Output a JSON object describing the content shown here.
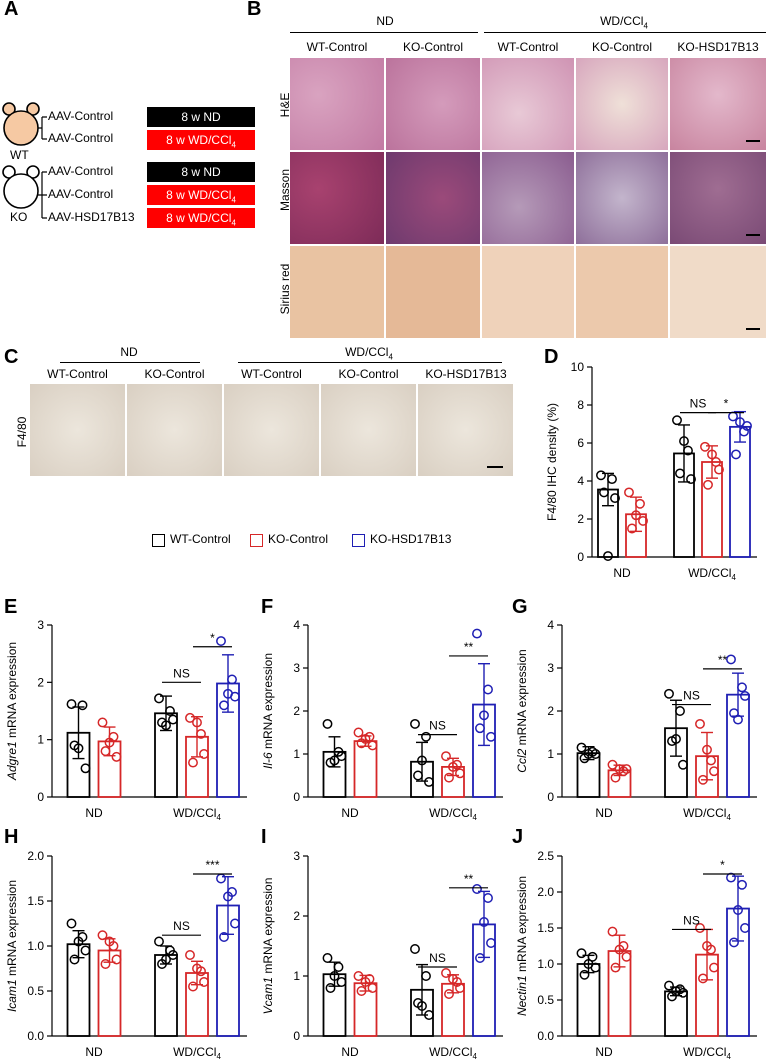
{
  "panels": {
    "A": "A",
    "B": "B",
    "C": "C",
    "D": "D",
    "E": "E",
    "F": "F",
    "G": "G",
    "H": "H",
    "I": "I",
    "J": "J"
  },
  "panelA": {
    "groups": [
      {
        "genotype": "WT",
        "rows": [
          {
            "aav": "AAV-Control",
            "diet": "8 w ND",
            "color": "#000000"
          },
          {
            "aav": "AAV-Control",
            "diet": "8 w WD/CCl4",
            "color": "#ff0000"
          }
        ]
      },
      {
        "genotype": "KO",
        "rows": [
          {
            "aav": "AAV-Control",
            "diet": "8 w ND",
            "color": "#000000"
          },
          {
            "aav": "AAV-Control",
            "diet": "8 w WD/CCl4",
            "color": "#ff0000"
          },
          {
            "aav": "AAV-HSD17B13",
            "diet": "8 w WD/CCl4",
            "color": "#ff0000"
          }
        ]
      }
    ]
  },
  "panelB": {
    "nd_label": "ND",
    "wd_label": "WD/CCl4",
    "columns": [
      "WT-Control",
      "KO-Control",
      "WT-Control",
      "KO-Control",
      "KO-HSD17B13"
    ],
    "stains": [
      "H&E",
      "Masson",
      "Sirius red"
    ]
  },
  "panelC": {
    "nd_label": "ND",
    "wd_label": "WD/CCl4",
    "columns": [
      "WT-Control",
      "KO-Control",
      "WT-Control",
      "KO-Control",
      "KO-HSD17B13"
    ],
    "stain": "F4/80"
  },
  "legend": {
    "items": [
      "WT-Control",
      "KO-Control",
      "KO-HSD17B13"
    ],
    "colors": [
      "#000000",
      "#d62728",
      "#1f1fb4"
    ]
  },
  "chart_data": [
    {
      "id": "D",
      "type": "bar",
      "ylabel": "F4/80 IHC density (%)",
      "ylim": [
        0,
        10
      ],
      "yticks": [
        "0",
        "2",
        "4",
        "6",
        "8",
        "10"
      ],
      "categories": [
        "ND",
        "WD/CCl4"
      ],
      "series": [
        {
          "name": "WT-Control",
          "values": [
            3.55,
            5.45
          ],
          "err": [
            0.85,
            1.5
          ],
          "points": [
            [
              4.3,
              4.1,
              3.4,
              3.1,
              0.05
            ],
            [
              7.2,
              5.6,
              4.4,
              4.1,
              6.1
            ]
          ]
        },
        {
          "name": "KO-Control",
          "values": [
            2.25,
            5.0
          ],
          "err": [
            0.9,
            0.85
          ],
          "points": [
            [
              3.4,
              2.8,
              1.5,
              1.9,
              2.2
            ],
            [
              5.8,
              5.0,
              3.8,
              4.6,
              5.4
            ]
          ]
        },
        {
          "name": "KO-HSD17B13",
          "values": [
            null,
            6.85
          ],
          "err": [
            null,
            0.8
          ],
          "points": [
            [],
            [
              7.4,
              6.6,
              5.4,
              6.9,
              7.1
            ]
          ]
        }
      ],
      "sig": [
        {
          "label": "NS",
          "ci": 1,
          "from": 0,
          "to": 1,
          "y": 7.6
        },
        {
          "label": "*",
          "ci": 1,
          "from": 1,
          "to": 2,
          "y": 7.6
        }
      ]
    },
    {
      "id": "E",
      "type": "bar",
      "ylabel_italic": "Adgre1",
      "ylabel_rest": " mRNA expression",
      "ylim": [
        0,
        3
      ],
      "yticks": [
        "0",
        "1",
        "2",
        "3"
      ],
      "categories": [
        "ND",
        "WD/CCl4"
      ],
      "series": [
        {
          "name": "WT-Control",
          "values": [
            1.12,
            1.46
          ],
          "err": [
            0.45,
            0.3
          ],
          "points": [
            [
              1.62,
              1.6,
              0.9,
              0.5,
              0.85
            ],
            [
              1.72,
              1.5,
              1.3,
              1.35,
              1.25
            ]
          ]
        },
        {
          "name": "KO-Control",
          "values": [
            0.97,
            1.05
          ],
          "err": [
            0.25,
            0.35
          ],
          "points": [
            [
              1.3,
              1.05,
              0.8,
              0.7,
              0.95
            ],
            [
              1.38,
              1.1,
              0.6,
              0.75,
              1.3
            ]
          ]
        },
        {
          "name": "KO-HSD17B13",
          "values": [
            null,
            1.98
          ],
          "err": [
            null,
            0.5
          ],
          "points": [
            [],
            [
              2.72,
              2.05,
              1.6,
              1.75,
              1.8
            ]
          ]
        }
      ],
      "sig": [
        {
          "label": "NS",
          "ci": 1,
          "from": 0,
          "to": 1,
          "y": 2.0
        },
        {
          "label": "*",
          "ci": 1,
          "from": 1,
          "to": 2,
          "y": 2.62
        }
      ]
    },
    {
      "id": "F",
      "type": "bar",
      "ylabel_italic": "Il-6",
      "ylabel_rest": " mRNA expression",
      "ylim": [
        0,
        4
      ],
      "yticks": [
        "0",
        "1",
        "2",
        "3",
        "4"
      ],
      "categories": [
        "ND",
        "WD/CCl4"
      ],
      "series": [
        {
          "name": "WT-Control",
          "values": [
            1.05,
            0.82
          ],
          "err": [
            0.35,
            0.45
          ],
          "points": [
            [
              1.7,
              1.05,
              0.8,
              0.95,
              0.85
            ],
            [
              1.7,
              1.4,
              0.5,
              0.35,
              0.85
            ]
          ]
        },
        {
          "name": "KO-Control",
          "values": [
            1.3,
            0.7
          ],
          "err": [
            0.12,
            0.2
          ],
          "points": [
            [
              1.5,
              1.4,
              1.25,
              1.2,
              1.35
            ],
            [
              0.95,
              0.75,
              0.45,
              0.55,
              0.7
            ]
          ]
        },
        {
          "name": "KO-HSD17B13",
          "values": [
            null,
            2.15
          ],
          "err": [
            null,
            0.95
          ],
          "points": [
            [],
            [
              3.8,
              2.5,
              1.6,
              1.4,
              1.9
            ]
          ]
        }
      ],
      "sig": [
        {
          "label": "NS",
          "ci": 1,
          "from": 0,
          "to": 1,
          "y": 1.45
        },
        {
          "label": "**",
          "ci": 1,
          "from": 1,
          "to": 2,
          "y": 3.28
        }
      ]
    },
    {
      "id": "G",
      "type": "bar",
      "ylabel_italic": "Ccl2",
      "ylabel_rest": " mRNA expression",
      "ylim": [
        0,
        4
      ],
      "yticks": [
        "0",
        "1",
        "2",
        "3",
        "4"
      ],
      "categories": [
        "ND",
        "WD/CCl4"
      ],
      "series": [
        {
          "name": "WT-Control",
          "values": [
            1.02,
            1.6
          ],
          "err": [
            0.15,
            0.65
          ],
          "points": [
            [
              1.15,
              1.05,
              0.9,
              1.0,
              1.0
            ],
            [
              2.4,
              2.0,
              1.3,
              0.75,
              1.35
            ]
          ]
        },
        {
          "name": "KO-Control",
          "values": [
            0.62,
            0.95
          ],
          "err": [
            0.12,
            0.55
          ],
          "points": [
            [
              0.75,
              0.6,
              0.45,
              0.65,
              0.65
            ],
            [
              1.7,
              0.85,
              0.4,
              0.6,
              1.1
            ]
          ]
        },
        {
          "name": "KO-HSD17B13",
          "values": [
            null,
            2.38
          ],
          "err": [
            null,
            0.5
          ],
          "points": [
            [],
            [
              3.2,
              2.55,
              1.95,
              2.35,
              1.8
            ]
          ]
        }
      ],
      "sig": [
        {
          "label": "NS",
          "ci": 1,
          "from": 0,
          "to": 1,
          "y": 2.15
        },
        {
          "label": "**",
          "ci": 1,
          "from": 1,
          "to": 2,
          "y": 2.98
        }
      ]
    },
    {
      "id": "H",
      "type": "bar",
      "ylabel_italic": "Icam1",
      "ylabel_rest": " mRNA expression",
      "ylim": [
        0,
        2.0
      ],
      "yticks": [
        "0.0",
        "0.5",
        "1.0",
        "1.5",
        "2.0"
      ],
      "categories": [
        "ND",
        "WD/CCl4"
      ],
      "series": [
        {
          "name": "WT-Control",
          "values": [
            1.02,
            0.9
          ],
          "err": [
            0.15,
            0.1
          ],
          "points": [
            [
              1.25,
              1.1,
              0.85,
              0.95,
              1.05
            ],
            [
              1.05,
              0.95,
              0.8,
              0.9,
              0.85
            ]
          ]
        },
        {
          "name": "KO-Control",
          "values": [
            0.95,
            0.7
          ],
          "err": [
            0.13,
            0.13
          ],
          "points": [
            [
              1.12,
              1.0,
              0.8,
              0.85,
              1.05
            ],
            [
              0.9,
              0.72,
              0.55,
              0.6,
              0.75
            ]
          ]
        },
        {
          "name": "KO-HSD17B13",
          "values": [
            null,
            1.45
          ],
          "err": [
            null,
            0.32
          ],
          "points": [
            [],
            [
              1.75,
              1.6,
              1.1,
              1.25,
              1.55
            ]
          ]
        }
      ],
      "sig": [
        {
          "label": "NS",
          "ci": 1,
          "from": 0,
          "to": 1,
          "y": 1.12
        },
        {
          "label": "***",
          "ci": 1,
          "from": 1,
          "to": 2,
          "y": 1.8
        }
      ]
    },
    {
      "id": "I",
      "type": "bar",
      "ylabel_italic": "Vcam1",
      "ylabel_rest": " mRNA expression",
      "ylim": [
        0,
        3
      ],
      "yticks": [
        "0",
        "1",
        "2",
        "3"
      ],
      "categories": [
        "ND",
        "WD/CCl4"
      ],
      "series": [
        {
          "name": "WT-Control",
          "values": [
            1.03,
            0.77
          ],
          "err": [
            0.2,
            0.42
          ],
          "points": [
            [
              1.3,
              1.15,
              0.8,
              0.9,
              1.0
            ],
            [
              1.45,
              1.0,
              0.55,
              0.35,
              0.5
            ]
          ]
        },
        {
          "name": "KO-Control",
          "values": [
            0.88,
            0.87
          ],
          "err": [
            0.13,
            0.15
          ],
          "points": [
            [
              1.0,
              0.95,
              0.75,
              0.8,
              0.9
            ],
            [
              1.05,
              0.9,
              0.7,
              0.8,
              0.95
            ]
          ]
        },
        {
          "name": "KO-HSD17B13",
          "values": [
            null,
            1.86
          ],
          "err": [
            null,
            0.55
          ],
          "points": [
            [],
            [
              2.45,
              2.3,
              1.3,
              1.55,
              1.9
            ]
          ]
        }
      ],
      "sig": [
        {
          "label": "NS",
          "ci": 1,
          "from": 0,
          "to": 1,
          "y": 1.15
        },
        {
          "label": "**",
          "ci": 1,
          "from": 1,
          "to": 2,
          "y": 2.47
        }
      ]
    },
    {
      "id": "J",
      "type": "bar",
      "ylabel_italic": "Nectin1",
      "ylabel_rest": " mRNA expression",
      "ylim": [
        0,
        2.5
      ],
      "yticks": [
        "0.0",
        "0.5",
        "1.0",
        "1.5",
        "2.0",
        "2.5"
      ],
      "categories": [
        "ND",
        "WD/CCl4"
      ],
      "series": [
        {
          "name": "WT-Control",
          "values": [
            1.0,
            0.62
          ],
          "err": [
            0.12,
            0.06
          ],
          "points": [
            [
              1.15,
              1.1,
              0.85,
              0.95,
              1.0
            ],
            [
              0.7,
              0.65,
              0.55,
              0.6,
              0.62
            ]
          ]
        },
        {
          "name": "KO-Control",
          "values": [
            1.18,
            1.13
          ],
          "err": [
            0.22,
            0.35
          ],
          "points": [
            [
              1.45,
              1.25,
              0.95,
              1.1,
              1.2
            ],
            [
              1.5,
              1.2,
              0.8,
              0.95,
              1.25
            ]
          ]
        },
        {
          "name": "KO-HSD17B13",
          "values": [
            null,
            1.77
          ],
          "err": [
            null,
            0.45
          ],
          "points": [
            [],
            [
              2.2,
              2.1,
              1.3,
              1.5,
              1.75
            ]
          ]
        }
      ],
      "sig": [
        {
          "label": "NS",
          "ci": 1,
          "from": 0,
          "to": 1,
          "y": 1.48
        },
        {
          "label": "*",
          "ci": 1,
          "from": 1,
          "to": 2,
          "y": 2.25
        }
      ]
    }
  ]
}
